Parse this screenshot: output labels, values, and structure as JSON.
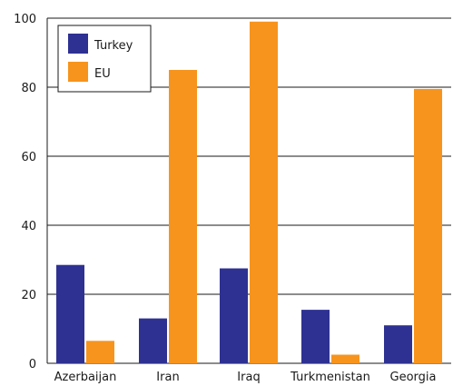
{
  "chart_data": {
    "type": "bar",
    "title": "",
    "xlabel": "",
    "ylabel": "",
    "categories": [
      "Azerbaijan",
      "Iran",
      "Iraq",
      "Turkmenistan",
      "Georgia"
    ],
    "series": [
      {
        "name": "Turkey",
        "values": [
          28.5,
          13,
          27.5,
          15.5,
          11
        ],
        "color": "#2e3192"
      },
      {
        "name": "EU",
        "values": [
          6.5,
          85,
          99,
          2.5,
          79.5
        ],
        "color": "#f7941d"
      }
    ],
    "ylim": [
      0,
      100
    ],
    "yticks": [
      0,
      20,
      40,
      60,
      80,
      100
    ],
    "grid": true,
    "legend_position": "top-left"
  }
}
